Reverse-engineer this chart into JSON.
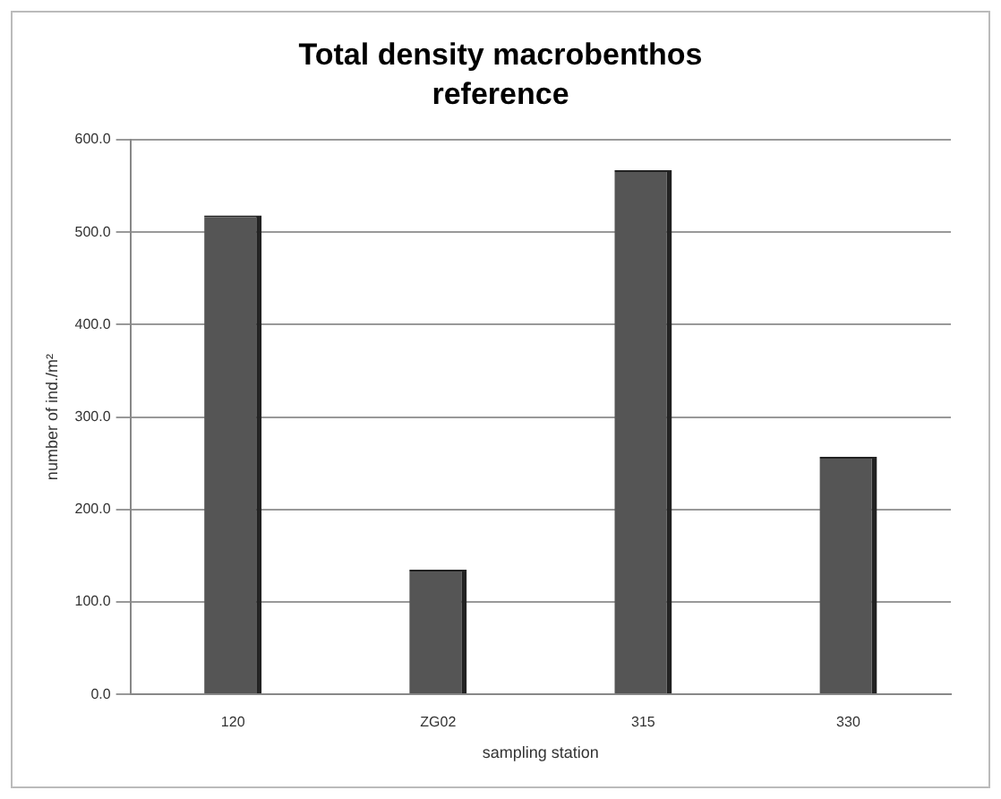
{
  "chart_data": {
    "type": "bar",
    "title": "Total density macrobenthos",
    "subtitle": "reference",
    "xlabel": "sampling station",
    "ylabel": "number of ind./m²",
    "categories": [
      "120",
      "ZG02",
      "315",
      "330"
    ],
    "values": [
      518,
      135,
      567,
      257
    ],
    "color": "#555555",
    "ylim": [
      0,
      600
    ],
    "yticks": [
      {
        "value": 0,
        "label": "0.0"
      },
      {
        "value": 100,
        "label": "100.0"
      },
      {
        "value": 200,
        "label": "200.0"
      },
      {
        "value": 300,
        "label": "300.0"
      },
      {
        "value": 400,
        "label": "400.0"
      },
      {
        "value": 500,
        "label": "500.0"
      },
      {
        "value": 600,
        "label": "600.0"
      }
    ],
    "grid": "y"
  }
}
